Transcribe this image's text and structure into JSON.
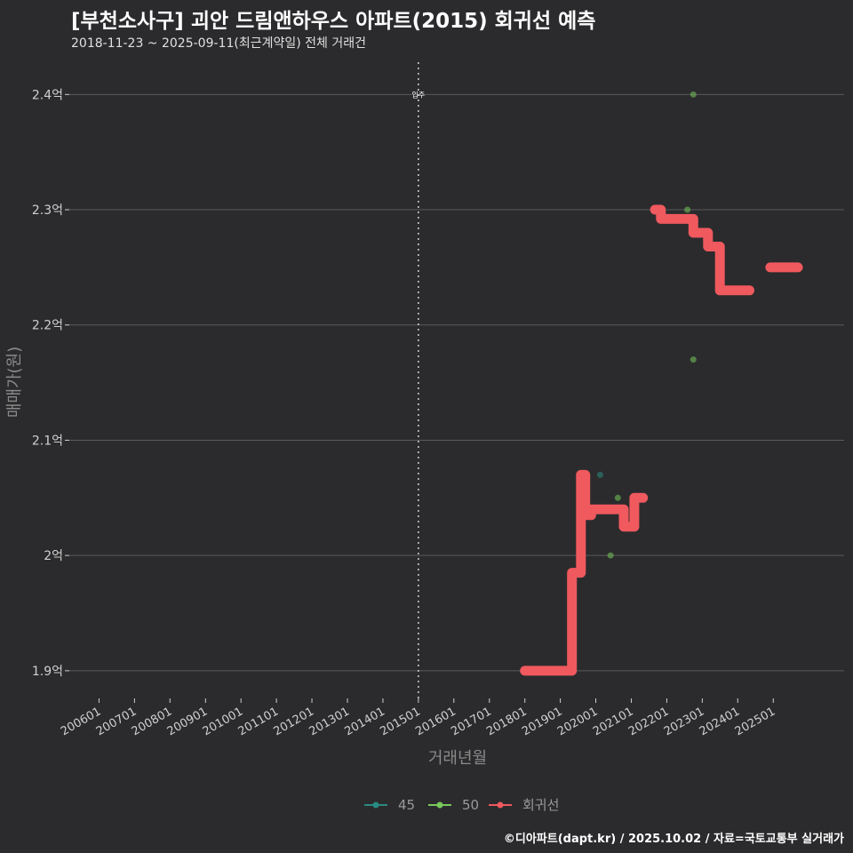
{
  "title": "[부천소사구] 괴안 드림앤하우스 아파트(2015) 회귀선 예측",
  "subtitle": "2018-11-23 ~ 2025-09-11(최근계약일) 전체 거래건",
  "caption": "©디아파트(dapt.kr) / 2025.10.02 / 자료=국토교통부 실거래가",
  "colors": {
    "background": "#2b2b2d",
    "grid": "#5a5a5c",
    "s45": "#2a8a80",
    "s50": "#77c95b",
    "regression": "#f0595e",
    "vline": "#c8c8c8"
  },
  "chart_data": {
    "type": "scatter",
    "xlabel": "거래년월",
    "ylabel": "매매가(원)",
    "x_tick_labels": [
      "200601",
      "200701",
      "200801",
      "200901",
      "201001",
      "201101",
      "201201",
      "201301",
      "201401",
      "201501",
      "201601",
      "201701",
      "201801",
      "201901",
      "202001",
      "202101",
      "202201",
      "202301",
      "202401",
      "202501"
    ],
    "y_ticks": [
      {
        "value": 1.9,
        "label": "1.9억"
      },
      {
        "value": 2.0,
        "label": "2억"
      },
      {
        "value": 2.1,
        "label": "2.1억"
      },
      {
        "value": 2.2,
        "label": "2.2억"
      },
      {
        "value": 2.3,
        "label": "2.3억"
      },
      {
        "value": 2.4,
        "label": "2.4억"
      }
    ],
    "ylim": [
      1.876,
      2.428
    ],
    "xlim": [
      "2005-03-01",
      "2026-12-31"
    ],
    "grid": true,
    "legend_position": "bottom",
    "vline": {
      "date": "2015-01-01",
      "label": "입주"
    },
    "series": [
      {
        "name": "45",
        "points": [
          {
            "x": "2020-02-15",
            "y": 2.07
          }
        ]
      },
      {
        "name": "50",
        "points": [
          {
            "x": "2020-06-01",
            "y": 2.0
          },
          {
            "x": "2020-08-15",
            "y": 2.05
          },
          {
            "x": "2022-08-01",
            "y": 2.3
          },
          {
            "x": "2022-10-01",
            "y": 2.4
          },
          {
            "x": "2022-10-01",
            "y": 2.17
          }
        ]
      }
    ],
    "regression": {
      "name": "회귀선",
      "segments": [
        [
          {
            "x": "2018-01-01",
            "y": 1.9
          },
          {
            "x": "2019-05-01",
            "y": 1.9
          },
          {
            "x": "2019-05-01",
            "y": 1.985
          },
          {
            "x": "2019-08-01",
            "y": 1.985
          },
          {
            "x": "2019-08-01",
            "y": 2.07
          },
          {
            "x": "2019-09-15",
            "y": 2.07
          },
          {
            "x": "2019-09-15",
            "y": 2.035
          },
          {
            "x": "2019-11-15",
            "y": 2.035
          },
          {
            "x": "2019-11-15",
            "y": 2.04
          },
          {
            "x": "2020-10-15",
            "y": 2.04
          },
          {
            "x": "2020-10-15",
            "y": 2.025
          },
          {
            "x": "2021-02-01",
            "y": 2.025
          },
          {
            "x": "2021-02-01",
            "y": 2.05
          },
          {
            "x": "2021-05-01",
            "y": 2.05
          }
        ],
        [
          {
            "x": "2021-09-01",
            "y": 2.3
          },
          {
            "x": "2021-11-01",
            "y": 2.3
          },
          {
            "x": "2021-11-01",
            "y": 2.292
          },
          {
            "x": "2022-10-01",
            "y": 2.292
          },
          {
            "x": "2022-10-01",
            "y": 2.28
          },
          {
            "x": "2023-03-01",
            "y": 2.28
          },
          {
            "x": "2023-03-01",
            "y": 2.268
          },
          {
            "x": "2023-07-01",
            "y": 2.268
          },
          {
            "x": "2023-07-01",
            "y": 2.23
          },
          {
            "x": "2024-05-01",
            "y": 2.23
          }
        ],
        [
          {
            "x": "2024-12-01",
            "y": 2.25
          },
          {
            "x": "2025-09-11",
            "y": 2.25
          }
        ]
      ]
    }
  }
}
